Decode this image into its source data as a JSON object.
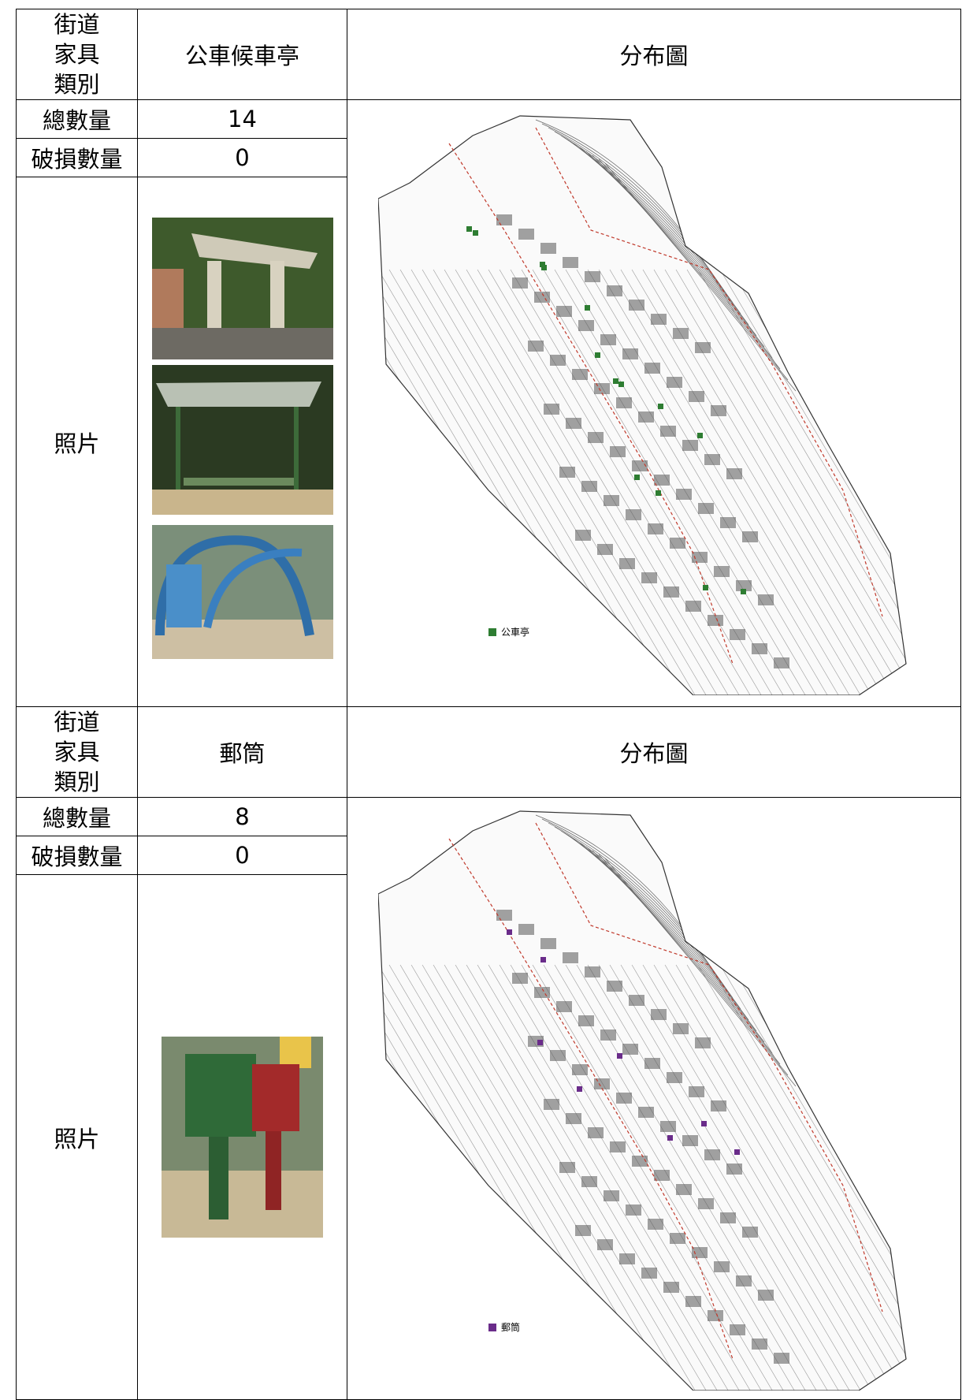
{
  "blocks": [
    {
      "category_label": "街道家具類別",
      "item": "公車候車亭",
      "map_header": "分布圖",
      "total_label": "總數量",
      "total": 14,
      "damaged_label": "破損數量",
      "damaged": 0,
      "photo_label": "照片",
      "legend": "公車亭"
    },
    {
      "category_label": "街道家具類別",
      "item": "郵筒",
      "map_header": "分布圖",
      "total_label": "總數量",
      "total": 8,
      "damaged_label": "破損數量",
      "damaged": 0,
      "photo_label": "照片",
      "legend": "郵筒"
    }
  ]
}
